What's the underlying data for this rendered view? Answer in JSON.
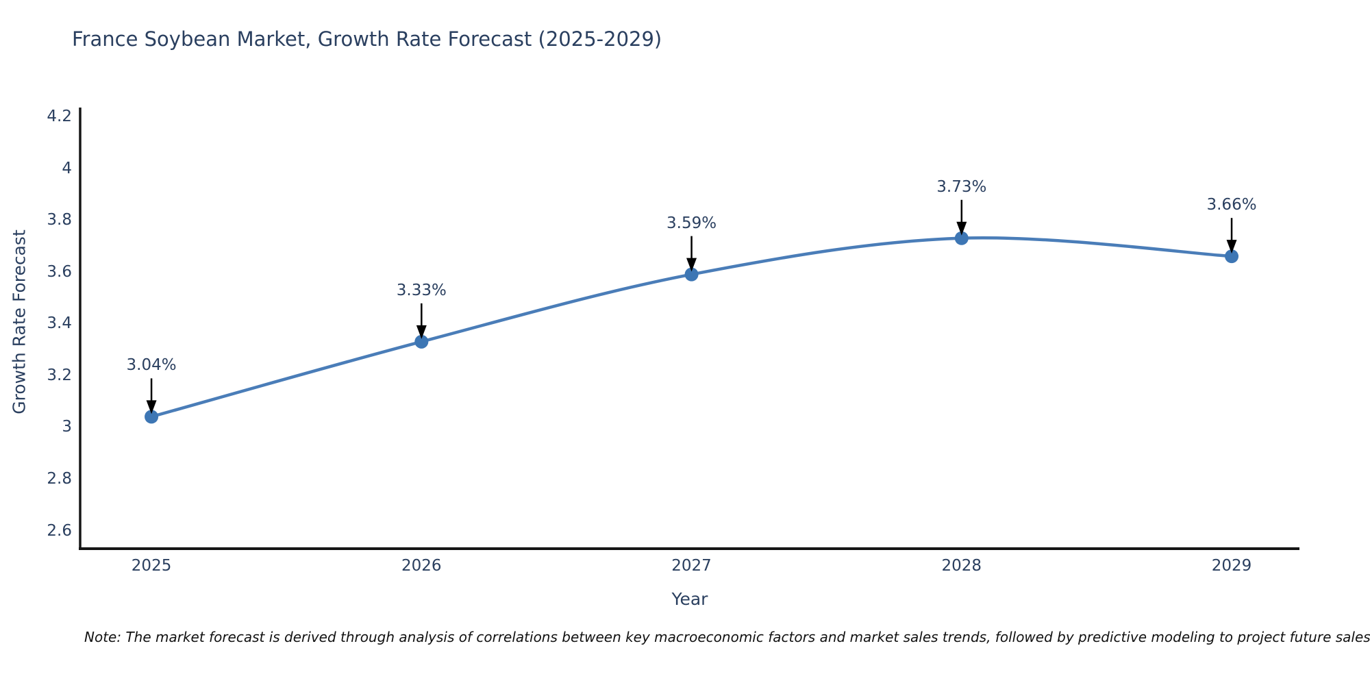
{
  "note": "Note: The market forecast is derived through analysis of correlations between key macroeconomic factors and market sales trends, followed by predictive modeling to project future sales",
  "chart_data": {
    "type": "line",
    "title": "France Soybean Market, Growth Rate Forecast (2025-2029)",
    "xlabel": "Year",
    "ylabel": "Growth Rate Forecast",
    "x": [
      2025,
      2026,
      2027,
      2028,
      2029
    ],
    "values": [
      3.04,
      3.33,
      3.59,
      3.73,
      3.66
    ],
    "point_labels": [
      "3.04%",
      "3.33%",
      "3.59%",
      "3.73%",
      "3.66%"
    ],
    "yticks": [
      2.6,
      2.8,
      3,
      3.2,
      3.4,
      3.6,
      3.8,
      4,
      4.2
    ],
    "xticks": [
      2025,
      2026,
      2027,
      2028,
      2029
    ],
    "xlim": [
      2024.736,
      2029.251
    ],
    "ylim": [
      2.53,
      4.235
    ],
    "line_shape": "spline",
    "grid": false,
    "legend": "none",
    "colors": {
      "line": "#4a7db8",
      "marker": "#3d76b4",
      "axis": "#161616",
      "tick_text": "#2a3f5f",
      "title_text": "#2a3f5f",
      "annotation_text": "#2a3f5f",
      "annotation_arrow": "#000000",
      "background": "#ffffff"
    }
  }
}
